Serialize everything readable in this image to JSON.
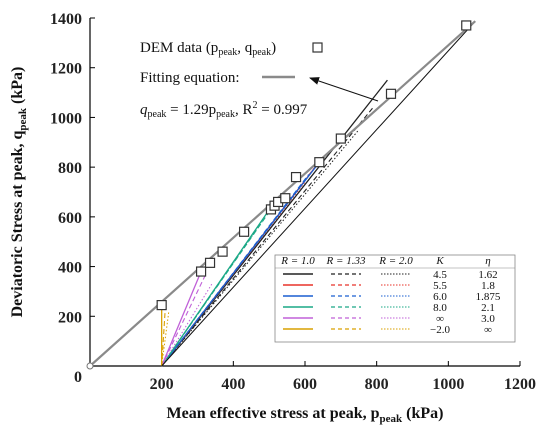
{
  "chart_data": {
    "type": "scatter",
    "xlabel": "Mean effective stress at peak, p",
    "xlabel_sub": "peak",
    "xlabel_unit": " (kPa)",
    "ylabel": "Deviatoric Stress at peak, q",
    "ylabel_sub": "peak",
    "ylabel_unit": " (kPa)",
    "xlim": [
      0,
      1200
    ],
    "ylim": [
      0,
      1400
    ],
    "x_ticks": [
      200,
      400,
      600,
      800,
      1000,
      1200
    ],
    "y_ticks": [
      0,
      200,
      400,
      600,
      800,
      1000,
      1200,
      1400
    ],
    "grid": false,
    "dem_points": {
      "name": "DEM data (p_peak, q_peak)",
      "x": [
        200,
        310,
        335,
        370,
        430,
        505,
        515,
        525,
        545,
        575,
        640,
        700,
        840,
        1050
      ],
      "y": [
        245,
        380,
        415,
        460,
        540,
        630,
        645,
        660,
        675,
        760,
        820,
        915,
        1095,
        1370
      ]
    },
    "fit_line": {
      "name": "Fitting equation",
      "equation": "q_peak = 1.29p_peak, R² = 0.997",
      "slope": 1.29,
      "x": [
        0,
        1075
      ],
      "y": [
        0,
        1387
      ]
    },
    "stress_paths": [
      {
        "K": "4.5",
        "eta": "1.62",
        "color": "#222222",
        "end_r1": [
          830,
          1150
        ],
        "end_r133": [
          790,
          1040
        ],
        "end_r2": [
          750,
          950
        ]
      },
      {
        "K": "5.5",
        "eta": "1.8",
        "color": "#e8332a",
        "end_r1": [
          650,
          840
        ],
        "end_r133": [
          625,
          795
        ],
        "end_r2": [
          600,
          740
        ]
      },
      {
        "K": "6.0",
        "eta": "1.875",
        "color": "#1a5fd0",
        "end_r1": [
          640,
          820
        ],
        "end_r133": [
          610,
          770
        ],
        "end_r2": [
          585,
          720
        ]
      },
      {
        "K": "8.0",
        "eta": "2.1",
        "color": "#1aa886",
        "end_r1": [
          520,
          670
        ],
        "end_r133": [
          505,
          630
        ],
        "end_r2": [
          480,
          580
        ]
      },
      {
        "K": "∞",
        "eta": "3.0",
        "color": "#c060d8",
        "end_r1": [
          310,
          380
        ],
        "end_r133": [
          320,
          360
        ],
        "end_r2": [
          340,
          330
        ]
      },
      {
        "K": "−2.0",
        "eta": "∞",
        "color": "#d9a000",
        "end_r1": [
          200,
          240
        ],
        "end_r133": [
          210,
          230
        ],
        "end_r2": [
          220,
          220
        ]
      }
    ],
    "origin_point": [
      200,
      0
    ],
    "legend": {
      "header_r1": "R = 1.0",
      "header_r133": "R = 1.33",
      "header_r2": "R = 2.0",
      "header_k": "K",
      "header_eta": "η",
      "placement": "bottom-right"
    }
  },
  "annotation": {
    "dem_label": "DEM data (p",
    "dem_sub1": "peak",
    "dem_mid": ", q",
    "dem_sub2": "peak",
    "dem_end": ")",
    "fit_label": "Fitting equation:",
    "eq_q": "q",
    "eq_sub1": "peak",
    "eq_mid": " = 1.29p",
    "eq_sub2": "peak",
    "eq_end": ", R",
    "eq_sup": "2",
    "eq_tail": " = 0.997"
  },
  "colors": {
    "fit_line": "#8a8a8a",
    "axis": "#000000",
    "marker_fill": "#ffffff",
    "marker_stroke": "#333333"
  }
}
